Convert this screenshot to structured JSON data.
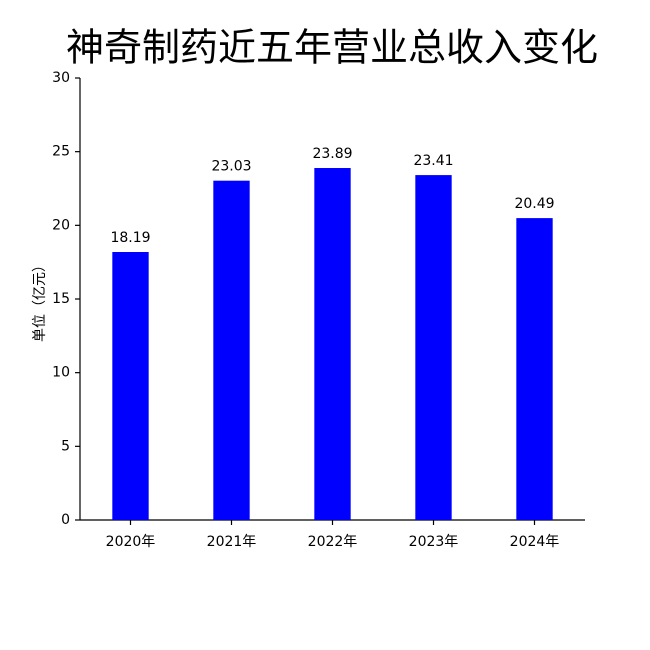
{
  "chart_data": {
    "type": "bar",
    "title": "神奇制药近五年营业总收入变化",
    "y_label": "单位（亿元）",
    "categories": [
      "2020年",
      "2021年",
      "2022年",
      "2023年",
      "2024年"
    ],
    "values": [
      18.19,
      23.03,
      23.89,
      23.41,
      20.49
    ],
    "color": "#0000ff",
    "ylim": [
      0,
      30
    ],
    "yticks": [
      0,
      5,
      10,
      15,
      20,
      25,
      30
    ],
    "grid": false
  }
}
